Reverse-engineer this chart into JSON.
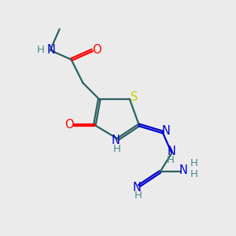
{
  "bg_color": "#ebebeb",
  "atom_colors": {
    "O": "#ff0000",
    "N": "#0000cc",
    "S": "#cccc00",
    "H": "#4a8888",
    "C": "#2a6060"
  },
  "font_size": 10.5,
  "small_font_size": 9.5,
  "bond_lw": 1.6,
  "double_sep": 0.09
}
